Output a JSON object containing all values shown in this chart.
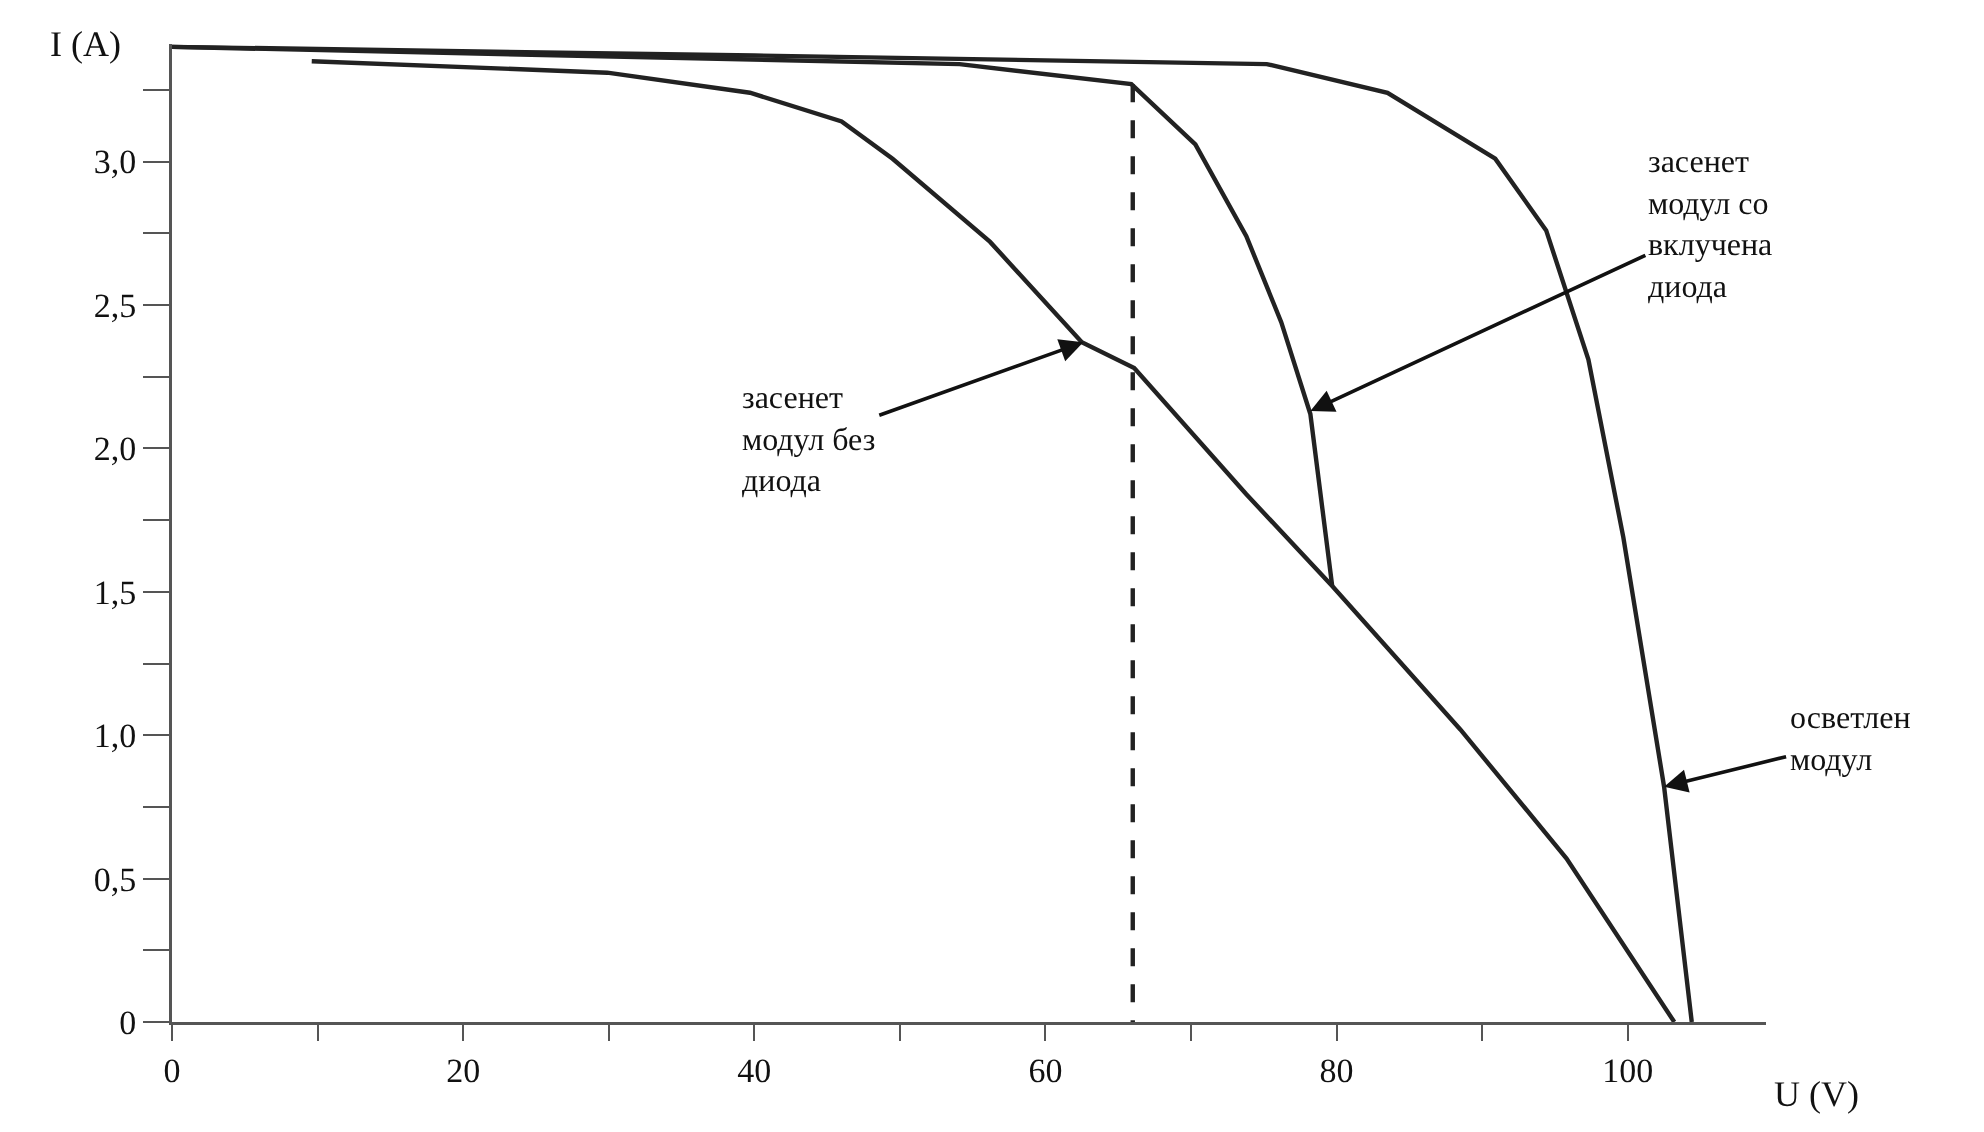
{
  "chart_data": {
    "type": "line",
    "xlabel": "U (V)",
    "ylabel": "I (A)",
    "xlim": [
      0,
      109.5
    ],
    "ylim": [
      0,
      3.41
    ],
    "xticks": [
      0,
      {
        "value": 10,
        "label": null
      },
      20,
      {
        "value": 30,
        "label": null
      },
      40,
      {
        "value": 50,
        "label": null
      },
      60,
      {
        "value": 70,
        "label": null
      },
      80,
      {
        "value": 90,
        "label": null
      },
      100
    ],
    "yticks": [
      0,
      {
        "value": 0.25,
        "label": null
      },
      {
        "value": 0.5,
        "label": "0,5"
      },
      {
        "value": 0.75,
        "label": null
      },
      {
        "value": 1,
        "label": "1,0"
      },
      {
        "value": 1.25,
        "label": null
      },
      {
        "value": 1.5,
        "label": "1,5"
      },
      {
        "value": 1.75,
        "label": null
      },
      {
        "value": 2,
        "label": "2,0"
      },
      {
        "value": 2.25,
        "label": null
      },
      {
        "value": 2.5,
        "label": "2,5"
      },
      {
        "value": 2.75,
        "label": null
      },
      {
        "value": 3,
        "label": "3,0"
      },
      {
        "value": 3.25,
        "label": null
      }
    ],
    "grid": false,
    "marker": "none",
    "series": [
      {
        "color": "#222222",
        "line_style": "solid",
        "x": [
          0,
          40,
          75.2,
          83.5,
          90.9,
          94.4,
          97.3,
          99.7,
          102.5,
          104.4
        ],
        "values": [
          3.4,
          3.37,
          3.34,
          3.24,
          3.01,
          2.76,
          2.31,
          1.69,
          0.82,
          0
        ]
      },
      {
        "color": "#222222",
        "line_style": "solid",
        "x": [
          0,
          54.1,
          65.9,
          70.3,
          73.8,
          76.2,
          78.2,
          79.7
        ],
        "values": [
          3.4,
          3.34,
          3.27,
          3.06,
          2.74,
          2.44,
          2.12,
          1.52
        ]
      },
      {
        "color": "#222222",
        "line_style": "solid",
        "x": [
          9.6,
          29.9,
          39.7,
          46.0,
          49.5,
          56.2,
          62.5,
          66.1,
          73.8,
          79.7,
          88.5,
          95.8,
          103.2
        ],
        "values": [
          3.35,
          3.31,
          3.24,
          3.14,
          3.01,
          2.72,
          2.37,
          2.28,
          1.84,
          1.52,
          1.02,
          0.57,
          0
        ]
      },
      {
        "color": "#222222",
        "line_style": "dashed",
        "x": [
          66.0,
          66.0
        ],
        "values": [
          3.27,
          0
        ]
      }
    ],
    "annotations": [
      {
        "text": "засенет\nмодул без\nдиода",
        "x": 62.6,
        "y": 2.37
      },
      {
        "text": "засенет\nмодул со\nвклучена\nдиода",
        "x": 78.2,
        "y": 2.13
      },
      {
        "text": "осветлен\nмодул",
        "x": 102.5,
        "y": 0.82
      }
    ]
  }
}
